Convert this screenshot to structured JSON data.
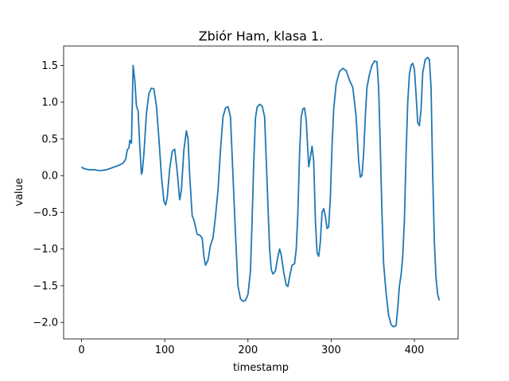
{
  "chart_data": {
    "type": "line",
    "title": "Zbiór Ham, klasa 1.",
    "xlabel": "timestamp",
    "ylabel": "value",
    "xlim": [
      -21.5,
      452.5
    ],
    "ylim": [
      -2.2245,
      1.7645
    ],
    "xticks": [
      0,
      100,
      200,
      300,
      400
    ],
    "xtick_labels": [
      "0",
      "100",
      "200",
      "300",
      "400"
    ],
    "yticks": [
      -2.0,
      -1.5,
      -1.0,
      -0.5,
      0.0,
      0.5,
      1.0,
      1.5
    ],
    "ytick_labels": [
      "−2.0",
      "−1.5",
      "−1.0",
      "−0.5",
      "0.0",
      "0.5",
      "1.0",
      "1.5"
    ],
    "grid": false,
    "legend": false,
    "series": [
      {
        "color": "#1f77b4",
        "points": [
          [
            0,
            0.12
          ],
          [
            2,
            0.1
          ],
          [
            5,
            0.09
          ],
          [
            8,
            0.08
          ],
          [
            12,
            0.08
          ],
          [
            16,
            0.08
          ],
          [
            20,
            0.07
          ],
          [
            25,
            0.07
          ],
          [
            30,
            0.08
          ],
          [
            35,
            0.1
          ],
          [
            40,
            0.12
          ],
          [
            45,
            0.14
          ],
          [
            50,
            0.17
          ],
          [
            53,
            0.22
          ],
          [
            55,
            0.35
          ],
          [
            57,
            0.38
          ],
          [
            58,
            0.48
          ],
          [
            59,
            0.47
          ],
          [
            60,
            0.44
          ],
          [
            62,
            1.5
          ],
          [
            64,
            1.3
          ],
          [
            66,
            0.95
          ],
          [
            68,
            0.88
          ],
          [
            70,
            0.4
          ],
          [
            72,
            0.02
          ],
          [
            73,
            0.05
          ],
          [
            75,
            0.3
          ],
          [
            78,
            0.85
          ],
          [
            81,
            1.12
          ],
          [
            84,
            1.19
          ],
          [
            87,
            1.18
          ],
          [
            90,
            0.95
          ],
          [
            93,
            0.5
          ],
          [
            96,
            0.0
          ],
          [
            99,
            -0.35
          ],
          [
            101,
            -0.4
          ],
          [
            103,
            -0.3
          ],
          [
            106,
            0.1
          ],
          [
            109,
            0.33
          ],
          [
            112,
            0.36
          ],
          [
            115,
            0.05
          ],
          [
            118,
            -0.33
          ],
          [
            120,
            -0.2
          ],
          [
            123,
            0.35
          ],
          [
            126,
            0.61
          ],
          [
            128,
            0.5
          ],
          [
            130,
            0.0
          ],
          [
            133,
            -0.55
          ],
          [
            135,
            -0.6
          ],
          [
            137,
            -0.7
          ],
          [
            139,
            -0.8
          ],
          [
            142,
            -0.81
          ],
          [
            145,
            -0.85
          ],
          [
            147,
            -1.1
          ],
          [
            149,
            -1.22
          ],
          [
            152,
            -1.15
          ],
          [
            155,
            -0.95
          ],
          [
            158,
            -0.85
          ],
          [
            161,
            -0.55
          ],
          [
            164,
            -0.2
          ],
          [
            167,
            0.35
          ],
          [
            170,
            0.8
          ],
          [
            173,
            0.92
          ],
          [
            176,
            0.94
          ],
          [
            179,
            0.8
          ],
          [
            182,
            0.0
          ],
          [
            185,
            -0.8
          ],
          [
            188,
            -1.5
          ],
          [
            191,
            -1.68
          ],
          [
            194,
            -1.71
          ],
          [
            197,
            -1.7
          ],
          [
            200,
            -1.62
          ],
          [
            203,
            -1.3
          ],
          [
            205,
            -0.6
          ],
          [
            207,
            0.2
          ],
          [
            209,
            0.78
          ],
          [
            211,
            0.93
          ],
          [
            214,
            0.97
          ],
          [
            217,
            0.95
          ],
          [
            220,
            0.8
          ],
          [
            222,
            0.2
          ],
          [
            224,
            -0.4
          ],
          [
            226,
            -1.0
          ],
          [
            228,
            -1.28
          ],
          [
            230,
            -1.34
          ],
          [
            233,
            -1.3
          ],
          [
            236,
            -1.1
          ],
          [
            238,
            -1.0
          ],
          [
            240,
            -1.08
          ],
          [
            243,
            -1.32
          ],
          [
            246,
            -1.49
          ],
          [
            248,
            -1.51
          ],
          [
            250,
            -1.38
          ],
          [
            253,
            -1.22
          ],
          [
            256,
            -1.2
          ],
          [
            258,
            -1.0
          ],
          [
            260,
            -0.5
          ],
          [
            262,
            0.3
          ],
          [
            264,
            0.8
          ],
          [
            266,
            0.91
          ],
          [
            268,
            0.92
          ],
          [
            270,
            0.75
          ],
          [
            273,
            0.12
          ],
          [
            275,
            0.25
          ],
          [
            277,
            0.4
          ],
          [
            279,
            0.2
          ],
          [
            281,
            -0.6
          ],
          [
            283,
            -1.05
          ],
          [
            285,
            -1.1
          ],
          [
            287,
            -0.9
          ],
          [
            289,
            -0.5
          ],
          [
            291,
            -0.45
          ],
          [
            293,
            -0.55
          ],
          [
            295,
            -0.72
          ],
          [
            297,
            -0.7
          ],
          [
            299,
            -0.3
          ],
          [
            301,
            0.4
          ],
          [
            303,
            0.9
          ],
          [
            306,
            1.25
          ],
          [
            310,
            1.42
          ],
          [
            314,
            1.46
          ],
          [
            318,
            1.43
          ],
          [
            322,
            1.3
          ],
          [
            326,
            1.2
          ],
          [
            330,
            0.8
          ],
          [
            333,
            0.2
          ],
          [
            335,
            -0.02
          ],
          [
            337,
            0.0
          ],
          [
            339,
            0.3
          ],
          [
            341,
            0.8
          ],
          [
            343,
            1.2
          ],
          [
            346,
            1.38
          ],
          [
            349,
            1.5
          ],
          [
            352,
            1.56
          ],
          [
            355,
            1.55
          ],
          [
            357,
            1.2
          ],
          [
            359,
            0.4
          ],
          [
            361,
            -0.5
          ],
          [
            363,
            -1.2
          ],
          [
            366,
            -1.6
          ],
          [
            369,
            -1.9
          ],
          [
            372,
            -2.03
          ],
          [
            375,
            -2.06
          ],
          [
            378,
            -2.04
          ],
          [
            380,
            -1.8
          ],
          [
            382,
            -1.5
          ],
          [
            384,
            -1.35
          ],
          [
            386,
            -1.1
          ],
          [
            388,
            -0.6
          ],
          [
            390,
            0.3
          ],
          [
            392,
            1.0
          ],
          [
            394,
            1.38
          ],
          [
            396,
            1.5
          ],
          [
            398,
            1.53
          ],
          [
            400,
            1.45
          ],
          [
            402,
            1.1
          ],
          [
            404,
            0.72
          ],
          [
            406,
            0.68
          ],
          [
            408,
            0.9
          ],
          [
            410,
            1.4
          ],
          [
            413,
            1.58
          ],
          [
            416,
            1.61
          ],
          [
            418,
            1.58
          ],
          [
            420,
            1.2
          ],
          [
            422,
            0.0
          ],
          [
            424,
            -0.9
          ],
          [
            426,
            -1.4
          ],
          [
            428,
            -1.62
          ],
          [
            430,
            -1.7
          ]
        ]
      }
    ]
  }
}
